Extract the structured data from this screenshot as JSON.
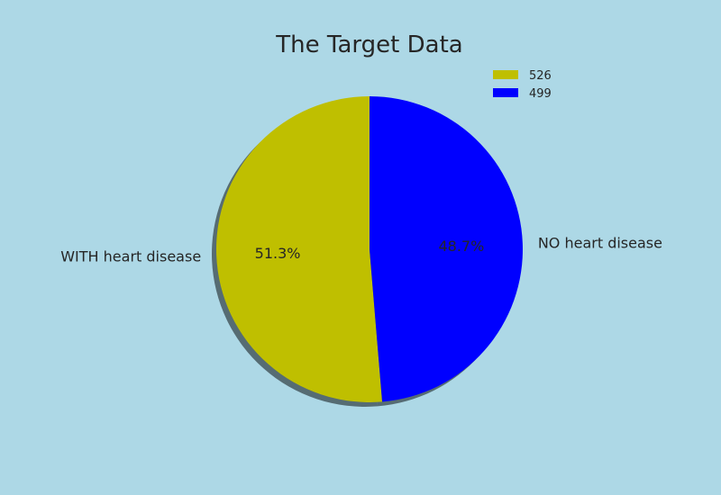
{
  "chart_data": {
    "type": "pie",
    "title": "The Target Data",
    "start_angle_deg": 90,
    "counterclock": true,
    "shadow": true,
    "background_color": "#add8e6",
    "legend_position": "top-right",
    "slices": [
      {
        "label": "WITH heart disease",
        "value": 526,
        "percent_label": "51.3%",
        "color": "#bfbf00",
        "legend": "526"
      },
      {
        "label": "NO heart disease",
        "value": 499,
        "percent_label": "48.7%",
        "color": "#0000ff",
        "legend": "499"
      }
    ]
  }
}
